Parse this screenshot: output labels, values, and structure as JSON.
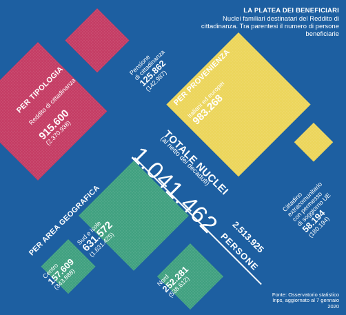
{
  "header": {
    "title": "LA PLATEA DEI BENEFICIARI",
    "subtitle": "Nuclei familiari destinatari del Reddito di cittadinanza. Tra parentesi il numero di persone beneficiarie"
  },
  "totals": {
    "label": "TOTALE NUCLEI",
    "note": "(al netto dei decaduti)",
    "households": "1.041.462",
    "people": "2.513.925",
    "people_label": "PERSONE"
  },
  "sections": {
    "tipologia": "PER TIPOLOGIA",
    "provenienza": "PER PROVENIENZA",
    "area": "PER AREA GEOGRAFICA"
  },
  "colors": {
    "background": "#1d5fa1",
    "tipologia": "#c43b63",
    "provenienza": "#ecd55a",
    "area": "#3fa07f"
  },
  "chart_data": {
    "type": "treemap",
    "groups": [
      {
        "name": "PER TIPOLOGIA",
        "items": [
          {
            "label": "Reddito di cittadinanza",
            "households": 915600,
            "people": 2370938,
            "households_text": "915.600",
            "people_text": "(2.370.938)"
          },
          {
            "label": "Pensione di cittadinanza",
            "households": 125862,
            "people": 142987,
            "households_text": "125.862",
            "people_text": "(142.987)"
          }
        ]
      },
      {
        "name": "PER PROVENIENZA",
        "items": [
          {
            "label": "Italiani ed europei",
            "households": 983268,
            "households_text": "983.268"
          },
          {
            "label": "Cittadino extracomunitario con permesso di soggiorno UE",
            "households": 58194,
            "people": 180194,
            "households_text": "58.194",
            "people_text": "(180.194)"
          }
        ]
      },
      {
        "name": "PER AREA GEOGRAFICA",
        "items": [
          {
            "label": "Sud e isole",
            "households": 631572,
            "people": 1631425,
            "households_text": "631.572",
            "people_text": "(1.631.425)"
          },
          {
            "label": "Nord",
            "households": 252281,
            "people": 538612,
            "households_text": "252.281",
            "people_text": "(538.612)"
          },
          {
            "label": "Centro",
            "households": 157609,
            "people": 343888,
            "households_text": "157.609",
            "people_text": "(343.888)"
          }
        ]
      }
    ]
  },
  "source": "Fonte: Osservatorio statistico Inps, aggiornato al 7 gennaio 2020"
}
